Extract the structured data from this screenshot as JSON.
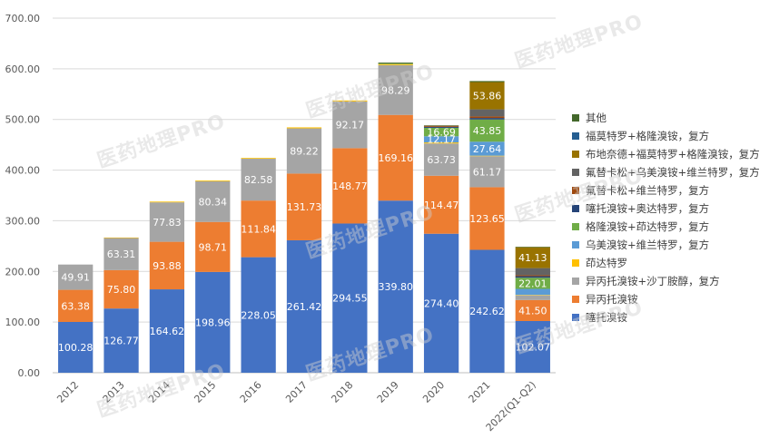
{
  "chart_data": {
    "type": "bar",
    "stacked": true,
    "categories": [
      "2012",
      "2013",
      "2014",
      "2015",
      "2016",
      "2017",
      "2018",
      "2019",
      "2020",
      "2021",
      "2022(Q1-Q2)"
    ],
    "ylim": [
      0,
      700
    ],
    "yticks": [
      "0.00",
      "100.00",
      "200.00",
      "300.00",
      "400.00",
      "500.00",
      "600.00",
      "700.00"
    ],
    "grid": true,
    "legend_position": "right",
    "series": [
      {
        "name": "噻托溴铵",
        "color": "#4472c4",
        "label_color": "#ffffff",
        "values": [
          100.28,
          126.77,
          164.62,
          198.96,
          228.05,
          261.42,
          294.55,
          339.8,
          274.4,
          242.62,
          102.07
        ]
      },
      {
        "name": "异丙托溴铵",
        "color": "#ed7d31",
        "label_color": "#ffffff",
        "values": [
          63.38,
          75.8,
          93.88,
          98.71,
          111.84,
          131.73,
          148.77,
          169.16,
          114.47,
          123.65,
          41.5
        ]
      },
      {
        "name": "异丙托溴铵+沙丁胺醇，复方",
        "color": "#a5a5a5",
        "label_color": "#ffffff",
        "values": [
          49.91,
          63.31,
          77.83,
          80.34,
          82.58,
          89.22,
          92.17,
          98.29,
          63.73,
          61.17,
          9
        ]
      },
      {
        "name": "茚达特罗",
        "color": "#ffc000",
        "label_color": "#ffffff",
        "values": [
          0,
          1,
          1.5,
          1.5,
          1.5,
          2,
          2,
          2,
          2,
          1,
          1
        ]
      },
      {
        "name": "乌美溴铵+维兰特罗，复方",
        "color": "#5b9bd5",
        "label_color": "#ffffff",
        "values": [
          0,
          0,
          0,
          0,
          0,
          0,
          0,
          0,
          12.17,
          27.64,
          12
        ]
      },
      {
        "name": "格隆溴铵+茚达特罗，复方",
        "color": "#70ad47",
        "label_color": "#ffffff",
        "values": [
          0,
          0,
          0,
          0,
          0,
          0,
          0,
          1,
          16.69,
          43.85,
          22.01
        ]
      },
      {
        "name": "噻托溴铵+奥达特罗，复方",
        "color": "#264478",
        "label_color": "#ffffff",
        "values": [
          0,
          0,
          0,
          0,
          0,
          0,
          0,
          0,
          2,
          3,
          3
        ]
      },
      {
        "name": "氟替卡松+维兰特罗，复方",
        "color": "#9e480e",
        "label_color": "#ffffff",
        "values": [
          0,
          0,
          0,
          0,
          0,
          0,
          0,
          0,
          2,
          3,
          2
        ]
      },
      {
        "name": "氟替卡松+乌美溴铵+维兰特罗，复方",
        "color": "#636363",
        "label_color": "#ffffff",
        "values": [
          0,
          0,
          0,
          0,
          0,
          0,
          0,
          0,
          0,
          14,
          14
        ]
      },
      {
        "name": "布地奈德+福莫特罗+格隆溴铵，复方",
        "color": "#997300",
        "label_color": "#ffffff",
        "values": [
          0,
          0,
          0,
          0,
          0,
          0,
          0,
          0,
          0,
          53.86,
          41.13
        ]
      },
      {
        "name": "福莫特罗+格隆溴铵，复方",
        "color": "#255e91",
        "label_color": "#ffffff",
        "values": [
          0,
          0,
          0,
          0,
          0,
          0,
          0,
          0,
          0,
          0,
          0
        ]
      },
      {
        "name": "其他",
        "color": "#43682b",
        "label_color": "#ffffff",
        "values": [
          0,
          0,
          0,
          0,
          0,
          0,
          0,
          2,
          1,
          2,
          1
        ]
      }
    ],
    "data_labels": [
      {
        "series": 0,
        "index": 0,
        "text": "100.28"
      },
      {
        "series": 0,
        "index": 1,
        "text": "126.77"
      },
      {
        "series": 0,
        "index": 2,
        "text": "164.62"
      },
      {
        "series": 0,
        "index": 3,
        "text": "198.96"
      },
      {
        "series": 0,
        "index": 4,
        "text": "228.05"
      },
      {
        "series": 0,
        "index": 5,
        "text": "261.42"
      },
      {
        "series": 0,
        "index": 6,
        "text": "294.55"
      },
      {
        "series": 0,
        "index": 7,
        "text": "339.80"
      },
      {
        "series": 0,
        "index": 8,
        "text": "274.40"
      },
      {
        "series": 0,
        "index": 9,
        "text": "242.62"
      },
      {
        "series": 0,
        "index": 10,
        "text": "102.07"
      },
      {
        "series": 1,
        "index": 0,
        "text": "63.38"
      },
      {
        "series": 1,
        "index": 1,
        "text": "75.80"
      },
      {
        "series": 1,
        "index": 2,
        "text": "93.88"
      },
      {
        "series": 1,
        "index": 3,
        "text": "98.71"
      },
      {
        "series": 1,
        "index": 4,
        "text": "111.84"
      },
      {
        "series": 1,
        "index": 5,
        "text": "131.73"
      },
      {
        "series": 1,
        "index": 6,
        "text": "148.77"
      },
      {
        "series": 1,
        "index": 7,
        "text": "169.16"
      },
      {
        "series": 1,
        "index": 8,
        "text": "114.47"
      },
      {
        "series": 1,
        "index": 9,
        "text": "123.65"
      },
      {
        "series": 1,
        "index": 10,
        "text": "41.50"
      },
      {
        "series": 2,
        "index": 0,
        "text": "49.91"
      },
      {
        "series": 2,
        "index": 1,
        "text": "63.31"
      },
      {
        "series": 2,
        "index": 2,
        "text": "77.83"
      },
      {
        "series": 2,
        "index": 3,
        "text": "80.34"
      },
      {
        "series": 2,
        "index": 4,
        "text": "82.58"
      },
      {
        "series": 2,
        "index": 5,
        "text": "89.22"
      },
      {
        "series": 2,
        "index": 6,
        "text": "92.17"
      },
      {
        "series": 2,
        "index": 7,
        "text": "98.29"
      },
      {
        "series": 2,
        "index": 8,
        "text": "63.73"
      },
      {
        "series": 2,
        "index": 9,
        "text": "61.17"
      },
      {
        "series": 4,
        "index": 8,
        "text": "12.17"
      },
      {
        "series": 4,
        "index": 9,
        "text": "27.64"
      },
      {
        "series": 5,
        "index": 8,
        "text": "16.69"
      },
      {
        "series": 5,
        "index": 9,
        "text": "43.85"
      },
      {
        "series": 5,
        "index": 10,
        "text": "22.01"
      },
      {
        "series": 9,
        "index": 9,
        "text": "53.86"
      },
      {
        "series": 9,
        "index": 10,
        "text": "41.13"
      }
    ],
    "watermark": "医药地理PRO"
  }
}
